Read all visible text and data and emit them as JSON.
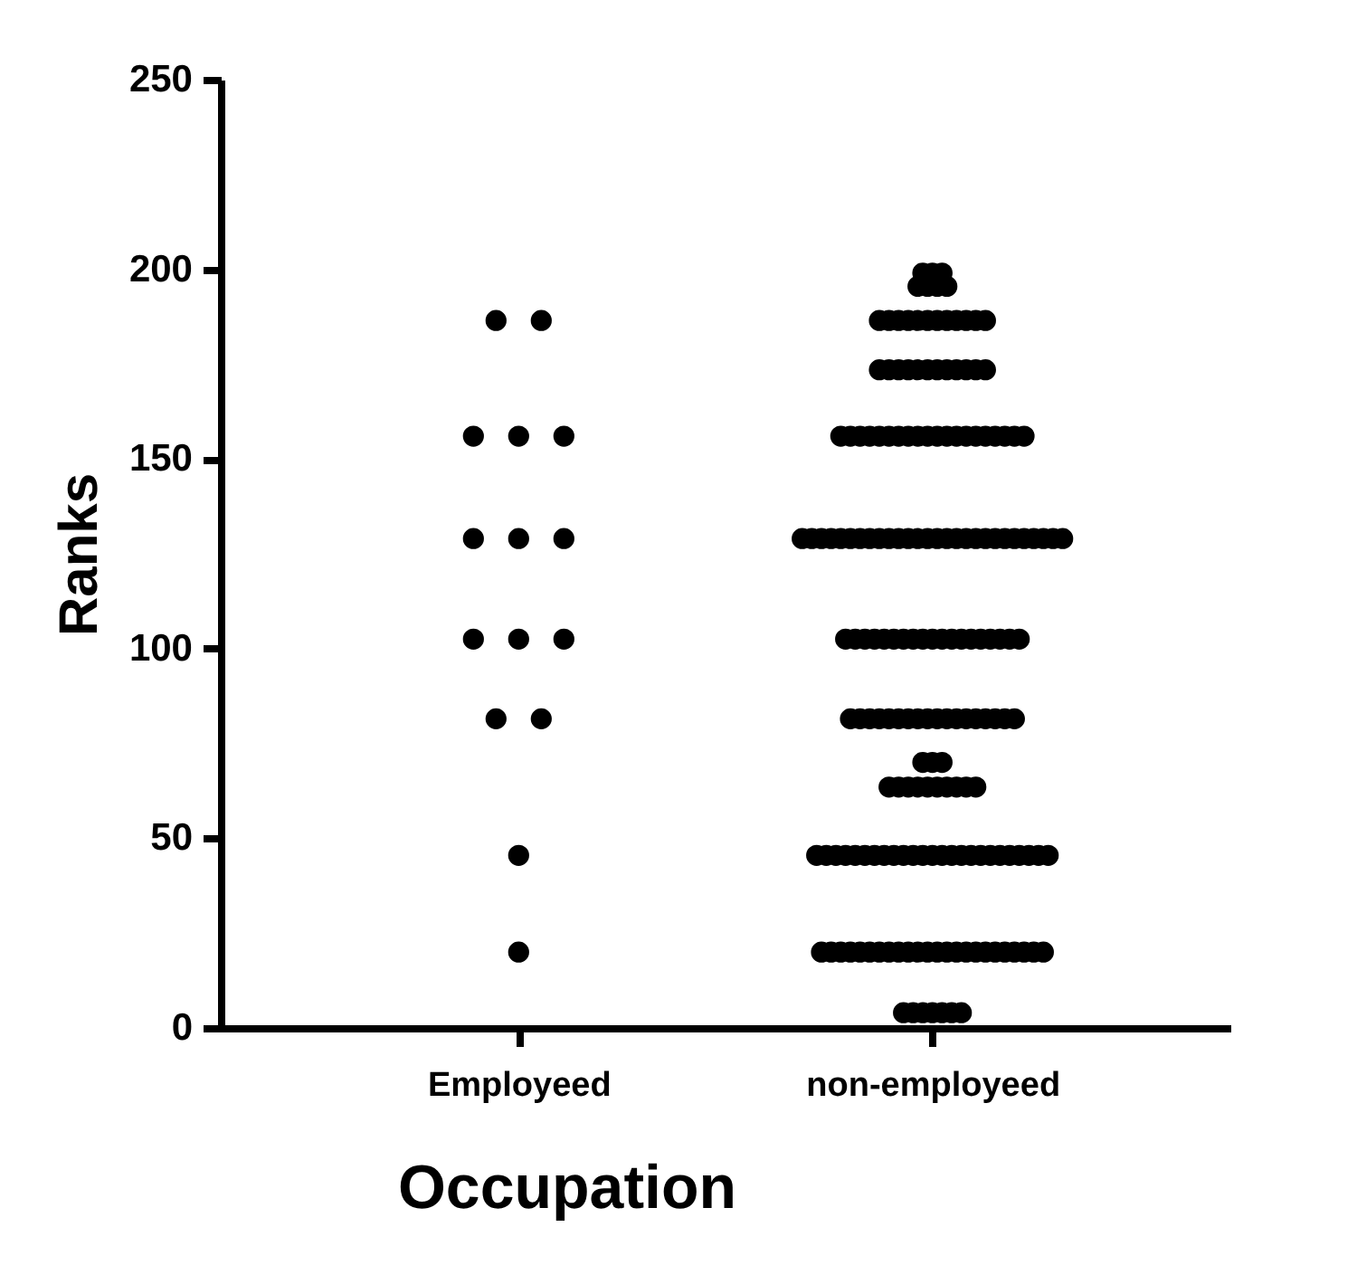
{
  "chart_data": {
    "type": "scatter",
    "xlabel": "Occupation",
    "ylabel": "Ranks",
    "categories": [
      "Employeed",
      "non-employeed"
    ],
    "ylim": [
      0,
      250
    ],
    "yticks": [
      0,
      50,
      100,
      150,
      200,
      250
    ],
    "marker": "circle",
    "series": [
      {
        "color": "#000000",
        "x": [
          "Employeed",
          "Employeed",
          "Employeed",
          "Employeed",
          "Employeed",
          "Employeed",
          "Employeed",
          "Employeed",
          "Employeed",
          "Employeed",
          "Employeed",
          "Employeed",
          "Employeed",
          "Employeed",
          "Employeed"
        ],
        "values": [
          20,
          45.5,
          81.5,
          81.5,
          102.5,
          102.5,
          102.5,
          129,
          129,
          129,
          156,
          156,
          156,
          186.5,
          186.5
        ]
      },
      {
        "color": "#000000",
        "x": [
          "non-employeed",
          "non-employeed",
          "non-employeed",
          "non-employeed",
          "non-employeed",
          "non-employeed",
          "non-employeed",
          "non-employeed",
          "non-employeed",
          "non-employeed",
          "non-employeed",
          "non-employeed",
          "non-employeed",
          "non-employeed",
          "non-employeed",
          "non-employeed",
          "non-employeed",
          "non-employeed",
          "non-employeed",
          "non-employeed",
          "non-employeed",
          "non-employeed",
          "non-employeed",
          "non-employeed",
          "non-employeed",
          "non-employeed",
          "non-employeed",
          "non-employeed",
          "non-employeed",
          "non-employeed",
          "non-employeed",
          "non-employeed",
          "non-employeed",
          "non-employeed",
          "non-employeed",
          "non-employeed",
          "non-employeed",
          "non-employeed",
          "non-employeed",
          "non-employeed",
          "non-employeed",
          "non-employeed",
          "non-employeed",
          "non-employeed",
          "non-employeed",
          "non-employeed",
          "non-employeed",
          "non-employeed",
          "non-employeed",
          "non-employeed",
          "non-employeed",
          "non-employeed",
          "non-employeed",
          "non-employeed",
          "non-employeed",
          "non-employeed",
          "non-employeed",
          "non-employeed",
          "non-employeed",
          "non-employeed",
          "non-employeed",
          "non-employeed",
          "non-employeed",
          "non-employeed",
          "non-employeed",
          "non-employeed",
          "non-employeed",
          "non-employeed",
          "non-employeed",
          "non-employeed",
          "non-employeed",
          "non-employeed",
          "non-employeed",
          "non-employeed",
          "non-employeed",
          "non-employeed",
          "non-employeed",
          "non-employeed",
          "non-employeed",
          "non-employeed",
          "non-employeed",
          "non-employeed",
          "non-employeed",
          "non-employeed",
          "non-employeed",
          "non-employeed",
          "non-employeed",
          "non-employeed",
          "non-employeed",
          "non-employeed",
          "non-employeed",
          "non-employeed",
          "non-employeed",
          "non-employeed",
          "non-employeed",
          "non-employeed",
          "non-employeed",
          "non-employeed",
          "non-employeed",
          "non-employeed",
          "non-employeed",
          "non-employeed",
          "non-employeed",
          "non-employeed",
          "non-employeed",
          "non-employeed",
          "non-employeed",
          "non-employeed",
          "non-employeed",
          "non-employeed",
          "non-employeed",
          "non-employeed",
          "non-employeed",
          "non-employeed",
          "non-employeed",
          "non-employeed",
          "non-employeed",
          "non-employeed",
          "non-employeed",
          "non-employeed",
          "non-employeed",
          "non-employeed",
          "non-employeed",
          "non-employeed",
          "non-employeed",
          "non-employeed",
          "non-employeed",
          "non-employeed",
          "non-employeed",
          "non-employeed",
          "non-employeed",
          "non-employeed",
          "non-employeed",
          "non-employeed",
          "non-employeed",
          "non-employeed",
          "non-employeed",
          "non-employeed",
          "non-employeed",
          "non-employeed",
          "non-employeed",
          "non-employeed",
          "non-employeed",
          "non-employeed",
          "non-employeed",
          "non-employeed",
          "non-employeed",
          "non-employeed",
          "non-employeed",
          "non-employeed",
          "non-employeed",
          "non-employeed",
          "non-employeed",
          "non-employeed",
          "non-employeed",
          "non-employeed",
          "non-employeed",
          "non-employeed",
          "non-employeed",
          "non-employeed",
          "non-employeed",
          "non-employeed",
          "non-employeed",
          "non-employeed",
          "non-employeed",
          "non-employeed",
          "non-employeed",
          "non-employeed",
          "non-employeed",
          "non-employeed",
          "non-employeed",
          "non-employeed",
          "non-employeed",
          "non-employeed",
          "non-employeed",
          "non-employeed",
          "non-employeed",
          "non-employeed",
          "non-employeed",
          "non-employeed",
          "non-employeed",
          "non-employeed",
          "non-employeed",
          "non-employeed",
          "non-employeed"
        ],
        "values": [
          4,
          4,
          4,
          4,
          4,
          4,
          4,
          20,
          20,
          20,
          20,
          20,
          20,
          20,
          20,
          20,
          20,
          20,
          20,
          20,
          20,
          20,
          20,
          20,
          20,
          20,
          20,
          20,
          20,
          20,
          20,
          45.5,
          45.5,
          45.5,
          45.5,
          45.5,
          45.5,
          45.5,
          45.5,
          45.5,
          45.5,
          45.5,
          45.5,
          45.5,
          45.5,
          45.5,
          45.5,
          45.5,
          45.5,
          45.5,
          45.5,
          45.5,
          45.5,
          45.5,
          45.5,
          45.5,
          63.5,
          63.5,
          63.5,
          63.5,
          63.5,
          63.5,
          63.5,
          63.5,
          63.5,
          63.5,
          70,
          70,
          70,
          81.5,
          81.5,
          81.5,
          81.5,
          81.5,
          81.5,
          81.5,
          81.5,
          81.5,
          81.5,
          81.5,
          81.5,
          81.5,
          81.5,
          81.5,
          81.5,
          81.5,
          81.5,
          102.5,
          102.5,
          102.5,
          102.5,
          102.5,
          102.5,
          102.5,
          102.5,
          102.5,
          102.5,
          102.5,
          102.5,
          102.5,
          102.5,
          102.5,
          102.5,
          102.5,
          102.5,
          102.5,
          129,
          129,
          129,
          129,
          129,
          129,
          129,
          129,
          129,
          129,
          129,
          129,
          129,
          129,
          129,
          129,
          129,
          129,
          129,
          129,
          129,
          129,
          129,
          129,
          129,
          129,
          129,
          129,
          156,
          156,
          156,
          156,
          156,
          156,
          156,
          156,
          156,
          156,
          156,
          156,
          156,
          156,
          156,
          156,
          156,
          156,
          156,
          156,
          173.5,
          173.5,
          173.5,
          173.5,
          173.5,
          173.5,
          173.5,
          173.5,
          173.5,
          173.5,
          173.5,
          173.5,
          186.5,
          186.5,
          186.5,
          186.5,
          186.5,
          186.5,
          186.5,
          186.5,
          186.5,
          186.5,
          186.5,
          186.5,
          195.5,
          195.5,
          195.5,
          195.5,
          199,
          199,
          199
        ]
      }
    ]
  }
}
